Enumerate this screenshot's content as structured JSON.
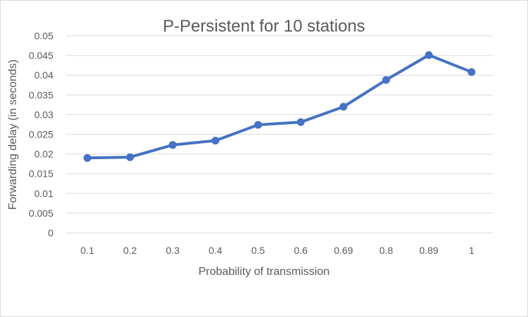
{
  "chart_data": {
    "type": "line",
    "title": "P-Persistent for 10 stations",
    "xlabel": "Probability of transmission",
    "ylabel": "Forwarding delay (in seconds)",
    "categories": [
      "0.1",
      "0.2",
      "0.3",
      "0.4",
      "0.5",
      "0.6",
      "0.69",
      "0.8",
      "0.89",
      "1"
    ],
    "series": [
      {
        "values": [
          0.019,
          0.0192,
          0.0223,
          0.0234,
          0.0274,
          0.0281,
          0.032,
          0.0388,
          0.0451,
          0.0408
        ]
      }
    ],
    "ylim": [
      0,
      0.05
    ],
    "yticks": [
      "0",
      "0.005",
      "0.01",
      "0.015",
      "0.02",
      "0.025",
      "0.03",
      "0.035",
      "0.04",
      "0.045",
      "0.05"
    ],
    "grid": "horizontal",
    "legend": "none",
    "colors": {
      "series": "#4472c4",
      "grid": "#d9d9d9",
      "text": "#595959"
    }
  }
}
